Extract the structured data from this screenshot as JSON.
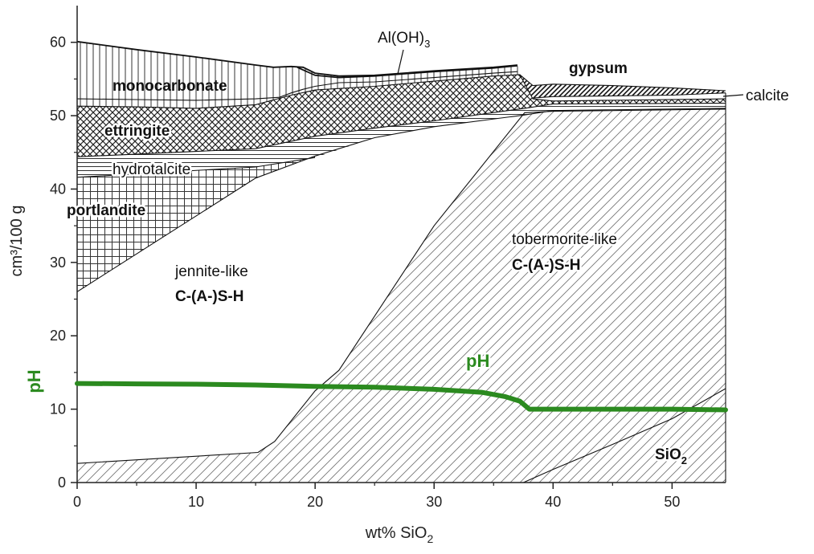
{
  "chart_data": {
    "type": "area",
    "title": "",
    "xlabel": "wt% SiO",
    "xlabel_subscript": "2",
    "ylabel": "cm³/100 g",
    "secondary_ylabel": "pH",
    "xlim": [
      0,
      54.5
    ],
    "ylim": [
      0,
      65
    ],
    "xticks": [
      0,
      10,
      20,
      30,
      40,
      50
    ],
    "yticks": [
      0,
      10,
      20,
      30,
      40,
      50,
      60
    ],
    "grid": false,
    "boundaries": [
      {
        "name": "sio2_top",
        "x": [
          37.5,
          40,
          45,
          50,
          54.5
        ],
        "y": [
          0,
          1.8,
          5.2,
          8.7,
          12.8
        ]
      },
      {
        "name": "cash_a_top",
        "x": [
          0,
          15.2,
          16.6,
          20,
          22,
          30,
          37.6,
          40,
          54.5
        ],
        "y": [
          2.6,
          4.1,
          5.6,
          12.5,
          15.3,
          35,
          50.4,
          50.6,
          50.9
        ]
      },
      {
        "name": "cash_b_top",
        "x": [
          0,
          15,
          20,
          25,
          30,
          37.6,
          40,
          54.5
        ],
        "y": [
          26,
          41.5,
          44.5,
          47,
          48.5,
          50.1,
          50.7,
          51
        ]
      },
      {
        "name": "portlandite_top",
        "x": [
          0,
          15,
          20
        ],
        "y": [
          41.6,
          43,
          44.3
        ]
      },
      {
        "name": "hydrotalcite_top",
        "x": [
          0,
          15,
          20,
          25,
          30,
          37.6,
          40,
          54.5
        ],
        "y": [
          44.4,
          45.5,
          47.2,
          48.3,
          49.3,
          51,
          51.6,
          51.7
        ]
      },
      {
        "name": "ettringite_top",
        "x": [
          0,
          5,
          10,
          15,
          18,
          20,
          25,
          30,
          35,
          37.2,
          38.3,
          40,
          54.5
        ],
        "y": [
          51.3,
          51.2,
          51,
          51.5,
          52.8,
          53.5,
          54,
          54.7,
          55.4,
          55.6,
          52.3,
          52,
          52.3
        ]
      },
      {
        "name": "monocarbonate_top",
        "x": [
          0,
          5,
          10,
          15,
          17,
          18,
          19,
          20,
          22,
          25,
          30,
          35,
          37
        ],
        "y": [
          52.3,
          52.2,
          52.1,
          52.3,
          52.5,
          53.1,
          53.6,
          54,
          54.5,
          54.6,
          55.2,
          55.8,
          56
        ]
      },
      {
        "name": "calcite_top",
        "x": [
          38.3,
          40,
          45,
          50,
          54.5
        ],
        "y": [
          52.4,
          52.6,
          52.7,
          52.8,
          53.1
        ]
      },
      {
        "name": "gypsum_top",
        "x": [
          37.2,
          38.3,
          40,
          45,
          50,
          54.5
        ],
        "y": [
          55.6,
          54.1,
          54.3,
          54.1,
          53.8,
          53.4
        ]
      },
      {
        "name": "alohx3_top",
        "x": [
          18.5,
          20,
          22,
          25,
          30,
          35,
          37
        ],
        "y": [
          56.6,
          55.5,
          55.2,
          55.4,
          56,
          56.5,
          56.8
        ]
      },
      {
        "name": "total_top",
        "x": [
          0,
          5,
          10,
          15,
          16.5,
          18,
          19,
          20,
          22,
          25,
          30,
          35,
          37
        ],
        "y": [
          60.1,
          59,
          58,
          56.9,
          56.6,
          56.7,
          56.6,
          55.8,
          55.4,
          55.5,
          56.1,
          56.6,
          56.9
        ]
      }
    ],
    "series": [
      {
        "name": "pH",
        "x": [
          0,
          5,
          10,
          15,
          20,
          25,
          30,
          34,
          36,
          37.2,
          38,
          40,
          45,
          50,
          54.5
        ],
        "y": [
          13.5,
          13.45,
          13.4,
          13.3,
          13.1,
          13,
          12.7,
          12.3,
          11.7,
          11.1,
          10,
          10,
          10,
          10,
          9.9
        ]
      }
    ],
    "phases": [
      {
        "name": "monocarbonate",
        "pattern": "vertical-lines"
      },
      {
        "name": "ettringite",
        "pattern": "crosshatch"
      },
      {
        "name": "hydrotalcite",
        "pattern": "horizontal-lines"
      },
      {
        "name": "portlandite",
        "pattern": "grid"
      },
      {
        "name": "jennite-like C-(A-)S-H",
        "pattern": "none"
      },
      {
        "name": "tobermorite-like C-(A-)S-H",
        "pattern": "diagonal-lines"
      },
      {
        "name": "SiO2",
        "pattern": "diagonal-lines"
      },
      {
        "name": "gypsum",
        "pattern": "diagonal-dark"
      },
      {
        "name": "calcite",
        "pattern": "none"
      },
      {
        "name": "Al(OH)3",
        "pattern": "none"
      }
    ],
    "annotations": {
      "monocarbonate": "monocarbonate",
      "ettringite": "ettringite",
      "hydrotalcite": "hydrotalcite",
      "portlandite": "portlandite",
      "jennite_1": "jennite-like",
      "jennite_2": "C-(A-)S-H",
      "tober_1": "tobermorite-like",
      "tober_2": "C-(A-)S-H",
      "ph": "pH",
      "sio2": "SiO",
      "sio2_sub": "2",
      "gypsum": "gypsum",
      "calcite": "calcite",
      "aloh": "Al(OH)",
      "aloh_sub": "3"
    },
    "colors": {
      "ph_line": "#2b8a1f",
      "hatch": "#555555",
      "outline": "#111111"
    }
  }
}
